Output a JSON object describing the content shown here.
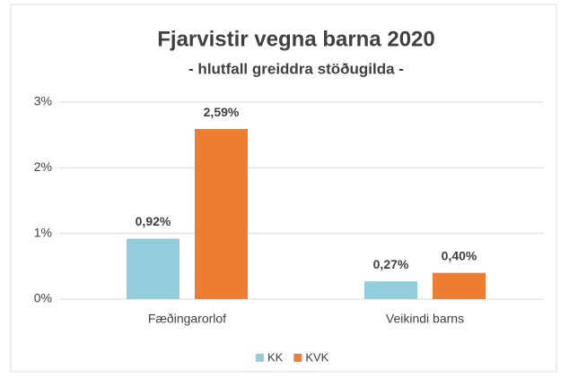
{
  "chart_data": {
    "type": "bar",
    "title": "Fjarvistir vegna barna 2020",
    "subtitle": "- hlutfall greiddra stöðugilda -",
    "categories": [
      "Fæðingarorlof",
      "Veikindi barns"
    ],
    "series": [
      {
        "name": "KK",
        "color": "#92cddc",
        "values": [
          0.92,
          0.27
        ],
        "value_labels": [
          "0,92%",
          "0,27%"
        ]
      },
      {
        "name": "KVK",
        "color": "#ed7d31",
        "values": [
          2.59,
          0.4
        ],
        "value_labels": [
          "2,59%",
          "0,40%"
        ]
      }
    ],
    "ylim": [
      0,
      3
    ],
    "yticks": [
      {
        "value": 0,
        "label": "0%"
      },
      {
        "value": 1,
        "label": "1%"
      },
      {
        "value": 2,
        "label": "2%"
      },
      {
        "value": 3,
        "label": "3%"
      }
    ],
    "grid": true,
    "legend": "bottom"
  }
}
